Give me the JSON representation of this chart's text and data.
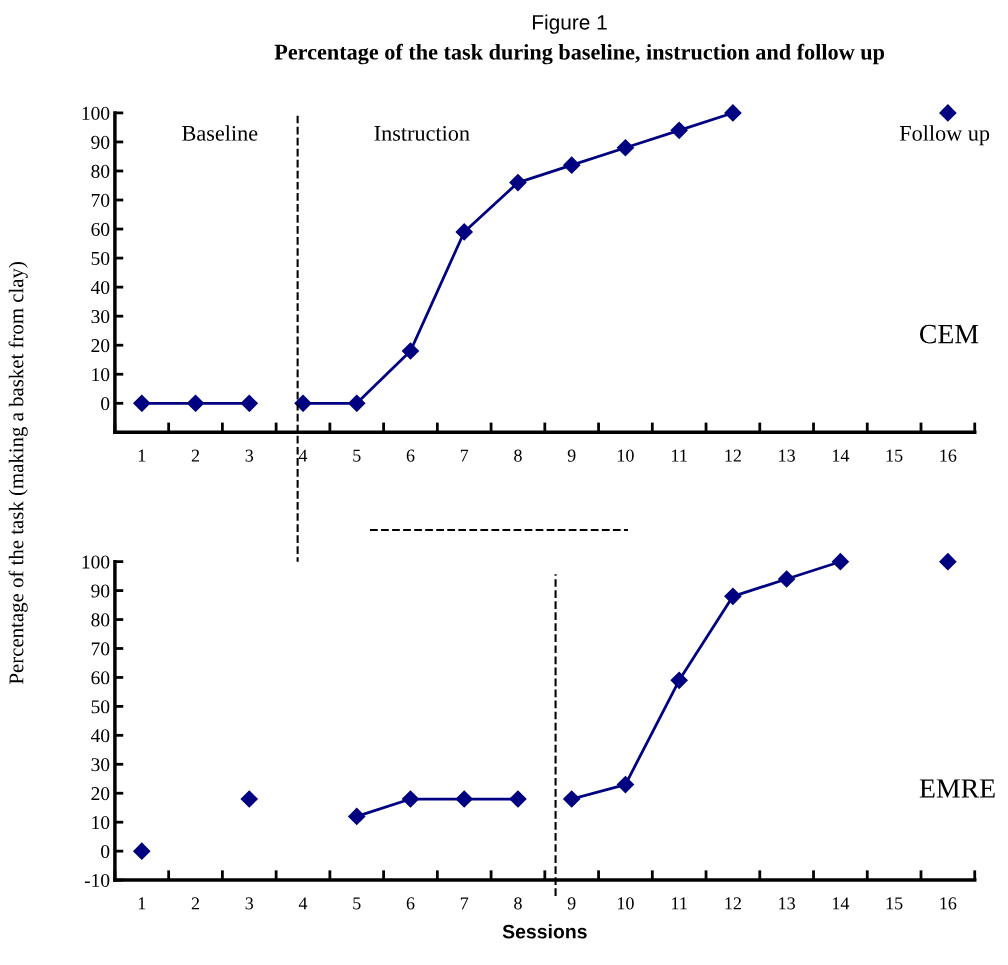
{
  "chart_data": [
    {
      "type": "line",
      "title": "Figure 1",
      "subtitle": "Percentage of the task during baseline, instruction and follow up",
      "ylabel": "Percentage of the task (making a basket from clay)",
      "xlim": [
        0.5,
        16.5
      ],
      "xticks": [
        1,
        2,
        3,
        4,
        5,
        6,
        7,
        8,
        9,
        10,
        11,
        12,
        13,
        14,
        15,
        16
      ],
      "ylim": [
        -10,
        100
      ],
      "yticks": [
        {
          "value": -10,
          "label": null
        },
        0,
        10,
        20,
        30,
        40,
        50,
        60,
        70,
        80,
        90,
        100
      ],
      "marker": "diamond",
      "line_style": "solid",
      "grid": false,
      "legend": false,
      "series": [
        {
          "color": "#000080",
          "x": [
            1,
            2,
            3
          ],
          "values": [
            0,
            0,
            0
          ]
        },
        {
          "color": "#000080",
          "x": [
            4,
            5,
            6,
            7,
            8,
            9,
            10,
            11,
            12
          ],
          "values": [
            0,
            0,
            18,
            59,
            76,
            82,
            88,
            94,
            100
          ]
        },
        {
          "type": "scatter",
          "color": "#000080",
          "x": [
            16
          ],
          "values": [
            100
          ]
        }
      ],
      "ref_lines": [
        {
          "axis": "x",
          "value": 3.9,
          "color": "#000000",
          "line_style": "dashed"
        }
      ],
      "annotations": [
        "Baseline",
        "Instruction",
        "Follow up",
        "CEM"
      ]
    },
    {
      "type": "line",
      "xlabel": "Sessions",
      "xlim": [
        0.5,
        16.5
      ],
      "xticks": [
        1,
        2,
        3,
        4,
        5,
        6,
        7,
        8,
        9,
        10,
        11,
        12,
        13,
        14,
        15,
        16
      ],
      "ylim": [
        -10,
        100
      ],
      "yticks": [
        -10,
        0,
        10,
        20,
        30,
        40,
        50,
        60,
        70,
        80,
        90,
        100
      ],
      "marker": "diamond",
      "line_style": "solid",
      "grid": false,
      "legend": false,
      "series": [
        {
          "type": "scatter",
          "color": "#000080",
          "x": [
            1,
            3
          ],
          "values": [
            0,
            18
          ]
        },
        {
          "color": "#000080",
          "x": [
            5,
            6,
            7,
            8
          ],
          "values": [
            12,
            18,
            18,
            18
          ]
        },
        {
          "color": "#000080",
          "x": [
            9,
            10,
            11,
            12,
            13,
            14
          ],
          "values": [
            18,
            23,
            59,
            88,
            94,
            100
          ]
        },
        {
          "type": "scatter",
          "color": "#000080",
          "x": [
            16
          ],
          "values": [
            100
          ]
        }
      ],
      "ref_lines": [
        {
          "axis": "x",
          "value": 8.7,
          "color": "#000000",
          "line_style": "dashed"
        }
      ],
      "annotations": [
        "EMRE"
      ]
    }
  ]
}
